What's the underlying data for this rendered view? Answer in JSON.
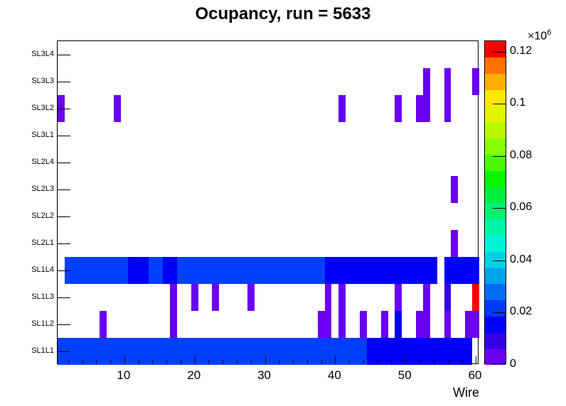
{
  "title": "Ocupancy, run = 5633",
  "axes": {
    "x_label": "Wire",
    "z_scale_prefix": "×10",
    "z_scale_exponent": "6"
  },
  "chart_data": {
    "type": "heatmap",
    "title": "Ocupancy, run = 5633",
    "xlabel": "Wire",
    "ylabel": "",
    "x_min": 0.5,
    "x_max": 60.5,
    "x_major_ticks": [
      10,
      20,
      30,
      40,
      50,
      60
    ],
    "x_minor_tick_step": 2,
    "y_categories": [
      "SL1L1",
      "SL1L2",
      "SL1L3",
      "SL1L4",
      "SL2L1",
      "SL2L2",
      "SL2L3",
      "SL2L4",
      "SL3L1",
      "SL3L2",
      "SL3L3",
      "SL3L4"
    ],
    "grid": false,
    "legend_position": "right",
    "z_max": 124000,
    "z_tick_values": [
      0,
      20000,
      40000,
      60000,
      80000,
      100000,
      120000
    ],
    "z_tick_labels": [
      "0",
      "0.02",
      "0.04",
      "0.06",
      "0.08",
      "0.1",
      "0.12"
    ],
    "palette": [
      "#6a00f1",
      "#3400e4",
      "#0000fe",
      "#0038f8",
      "#006cf2",
      "#00a2ec",
      "#00d0e6",
      "#00f2da",
      "#00f5a8",
      "#00f273",
      "#00ef40",
      "#0cf400",
      "#4cfa00",
      "#86ff00",
      "#baf800",
      "#e2f400",
      "#ffe700",
      "#ffae00",
      "#ff7300",
      "#fe0000"
    ],
    "cells": [
      {
        "row": "SL1L1",
        "from": 1,
        "to": 44,
        "value": 22000,
        "color": "#0140f8"
      },
      {
        "row": "SL1L1",
        "from": 45,
        "to": 59,
        "value": 15000,
        "color": "#0000fe"
      },
      {
        "row": "SL1L2",
        "from": 7,
        "to": 7,
        "value": 3000,
        "color": "#6a00f1"
      },
      {
        "row": "SL1L2",
        "from": 17,
        "to": 17,
        "value": 3000,
        "color": "#6a00f1"
      },
      {
        "row": "SL1L2",
        "from": 38,
        "to": 39,
        "value": 3000,
        "color": "#6a00f1"
      },
      {
        "row": "SL1L2",
        "from": 41,
        "to": 41,
        "value": 3000,
        "color": "#6a00f1"
      },
      {
        "row": "SL1L2",
        "from": 44,
        "to": 44,
        "value": 3000,
        "color": "#6a00f1"
      },
      {
        "row": "SL1L2",
        "from": 47,
        "to": 47,
        "value": 3000,
        "color": "#6a00f1"
      },
      {
        "row": "SL1L2",
        "from": 49,
        "to": 49,
        "value": 15000,
        "color": "#0000fe"
      },
      {
        "row": "SL1L2",
        "from": 52,
        "to": 53,
        "value": 3000,
        "color": "#6a00f1"
      },
      {
        "row": "SL1L2",
        "from": 56,
        "to": 56,
        "value": 3000,
        "color": "#6a00f1"
      },
      {
        "row": "SL1L2",
        "from": 59,
        "to": 60,
        "value": 3000,
        "color": "#6a00f1"
      },
      {
        "row": "SL1L3",
        "from": 17,
        "to": 17,
        "value": 3000,
        "color": "#6a00f1"
      },
      {
        "row": "SL1L3",
        "from": 20,
        "to": 20,
        "value": 3000,
        "color": "#6a00f1"
      },
      {
        "row": "SL1L3",
        "from": 23,
        "to": 23,
        "value": 3000,
        "color": "#6a00f1"
      },
      {
        "row": "SL1L3",
        "from": 28,
        "to": 28,
        "value": 3000,
        "color": "#6a00f1"
      },
      {
        "row": "SL1L3",
        "from": 39,
        "to": 39,
        "value": 3000,
        "color": "#6a00f1"
      },
      {
        "row": "SL1L3",
        "from": 41,
        "to": 41,
        "value": 3000,
        "color": "#6a00f1"
      },
      {
        "row": "SL1L3",
        "from": 49,
        "to": 49,
        "value": 3000,
        "color": "#6a00f1"
      },
      {
        "row": "SL1L3",
        "from": 53,
        "to": 53,
        "value": 3000,
        "color": "#6a00f1"
      },
      {
        "row": "SL1L3",
        "from": 56,
        "to": 56,
        "value": 9000,
        "color": "#3400e4"
      },
      {
        "row": "SL1L3",
        "from": 60,
        "to": 60,
        "value": 122000,
        "color": "#fe0000"
      },
      {
        "row": "SL1L4",
        "from": 2,
        "to": 10,
        "value": 22000,
        "color": "#0140f8"
      },
      {
        "row": "SL1L4",
        "from": 11,
        "to": 13,
        "value": 15000,
        "color": "#0000fe"
      },
      {
        "row": "SL1L4",
        "from": 14,
        "to": 15,
        "value": 22000,
        "color": "#0140f8"
      },
      {
        "row": "SL1L4",
        "from": 16,
        "to": 17,
        "value": 15000,
        "color": "#0000fe"
      },
      {
        "row": "SL1L4",
        "from": 18,
        "to": 38,
        "value": 22000,
        "color": "#0140f8"
      },
      {
        "row": "SL1L4",
        "from": 39,
        "to": 54,
        "value": 15000,
        "color": "#0000fe"
      },
      {
        "row": "SL1L4",
        "from": 56,
        "to": 60,
        "value": 15000,
        "color": "#0000fe"
      },
      {
        "row": "SL2L1",
        "from": 57,
        "to": 57,
        "value": 3000,
        "color": "#6a00f1"
      },
      {
        "row": "SL2L3",
        "from": 57,
        "to": 57,
        "value": 3000,
        "color": "#6a00f1"
      },
      {
        "row": "SL3L2",
        "from": 1,
        "to": 1,
        "value": 3000,
        "color": "#6a00f1"
      },
      {
        "row": "SL3L2",
        "from": 9,
        "to": 9,
        "value": 3000,
        "color": "#6a00f1"
      },
      {
        "row": "SL3L2",
        "from": 41,
        "to": 41,
        "value": 3000,
        "color": "#6a00f1"
      },
      {
        "row": "SL3L2",
        "from": 49,
        "to": 49,
        "value": 3000,
        "color": "#6a00f1"
      },
      {
        "row": "SL3L2",
        "from": 52,
        "to": 53,
        "value": 3000,
        "color": "#6a00f1"
      },
      {
        "row": "SL3L2",
        "from": 56,
        "to": 56,
        "value": 3000,
        "color": "#6a00f1"
      },
      {
        "row": "SL3L3",
        "from": 53,
        "to": 53,
        "value": 3000,
        "color": "#6a00f1"
      },
      {
        "row": "SL3L3",
        "from": 56,
        "to": 56,
        "value": 3000,
        "color": "#6a00f1"
      },
      {
        "row": "SL3L3",
        "from": 60,
        "to": 60,
        "value": 3000,
        "color": "#6a00f1"
      }
    ]
  }
}
